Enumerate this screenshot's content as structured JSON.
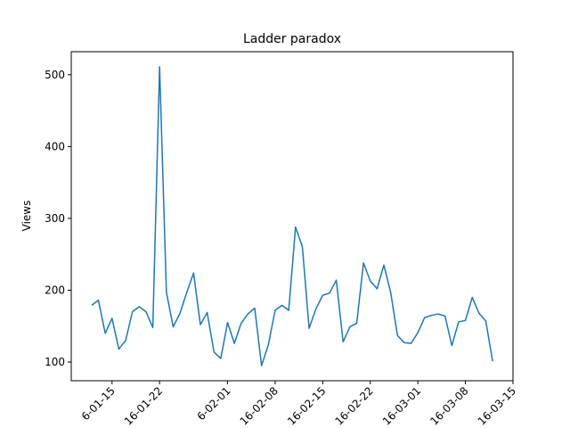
{
  "chart_data": {
    "type": "line",
    "title": "Ladder paradox",
    "y_label": "Views",
    "x": [
      "01-12",
      "01-13",
      "01-14",
      "01-15",
      "01-16",
      "01-17",
      "01-18",
      "01-19",
      "01-20",
      "01-21",
      "01-22",
      "01-23",
      "01-24",
      "01-25",
      "01-26",
      "01-27",
      "01-28",
      "01-29",
      "01-30",
      "01-31",
      "02-01",
      "02-02",
      "02-03",
      "02-04",
      "02-05",
      "02-06",
      "02-07",
      "02-08",
      "02-09",
      "02-10",
      "02-11",
      "02-12",
      "02-13",
      "02-14",
      "02-15",
      "02-16",
      "02-17",
      "02-18",
      "02-19",
      "02-20",
      "02-21",
      "02-22",
      "02-23",
      "02-24",
      "02-25",
      "02-26",
      "02-27",
      "02-28",
      "03-01",
      "03-02",
      "03-03",
      "03-04",
      "03-05",
      "03-06",
      "03-07",
      "03-08",
      "03-09",
      "03-10",
      "03-11",
      "03-12"
    ],
    "series": [
      {
        "name": "Views",
        "color": "#1f77b4",
        "values": [
          179,
          186,
          140,
          161,
          118,
          130,
          170,
          177,
          170,
          148,
          511,
          197,
          149,
          168,
          197,
          224,
          152,
          169,
          114,
          105,
          155,
          126,
          154,
          167,
          175,
          95,
          124,
          172,
          179,
          172,
          288,
          261,
          147,
          174,
          193,
          196,
          214,
          128,
          149,
          154,
          238,
          213,
          202,
          235,
          197,
          137,
          127,
          126,
          141,
          162,
          165,
          167,
          164,
          123,
          156,
          158,
          190,
          168,
          157,
          101
        ]
      }
    ],
    "xlim": [
      "01-09",
      "03-15"
    ],
    "xticks": [
      {
        "value": "01-15",
        "label": "6-01-15"
      },
      {
        "value": "01-22",
        "label": "16-01-22"
      },
      {
        "value": "02-01",
        "label": "6-02-01"
      },
      {
        "value": "02-08",
        "label": "16-02-08"
      },
      {
        "value": "02-15",
        "label": "16-02-15"
      },
      {
        "value": "02-22",
        "label": "16-02-22"
      },
      {
        "value": "03-01",
        "label": "16-03-01"
      },
      {
        "value": "03-08",
        "label": "16-03-08"
      },
      {
        "value": "03-15",
        "label": "16-03-15"
      }
    ],
    "ylim": [
      74,
      532
    ],
    "yticks": [
      100,
      200,
      300,
      400,
      500
    ],
    "grid": false
  }
}
